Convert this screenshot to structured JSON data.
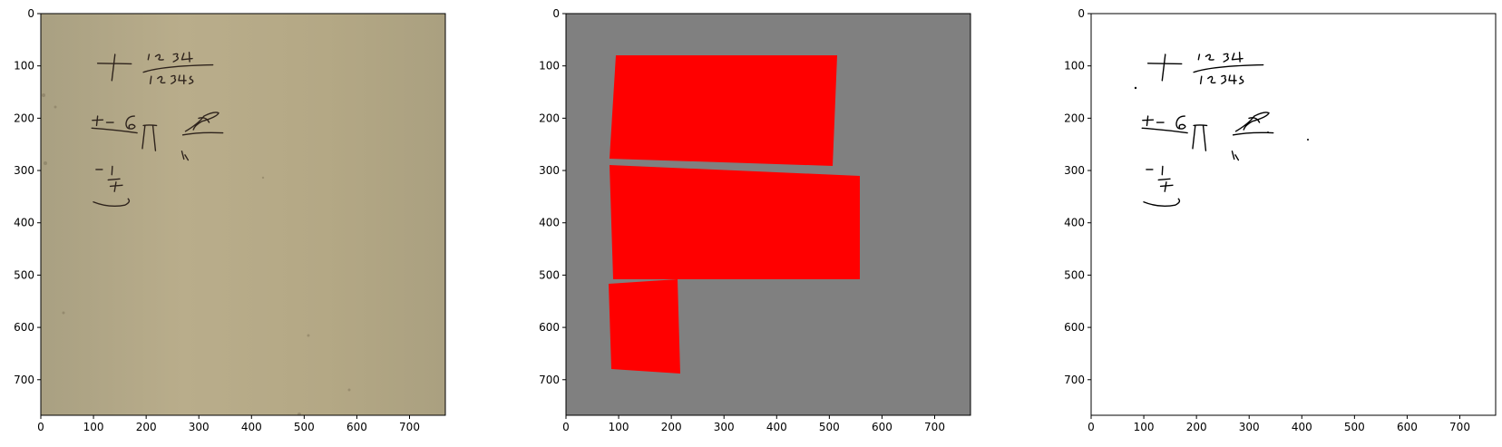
{
  "figure": {
    "panels": [
      {
        "id": "scan",
        "kind": "image",
        "content": "scanned handwritten math fragment",
        "background_color": "#b7aa88",
        "ink_color": "#2e231c",
        "handwriting": [
          "12 34",
          "12345",
          "+",
          "+ - 6",
          "1",
          "+"
        ]
      },
      {
        "id": "mask",
        "kind": "segmentation",
        "background_color": "#808080",
        "region_color": "#ff0000",
        "region_count": 3
      },
      {
        "id": "binarized",
        "kind": "image",
        "background_color": "#ffffff",
        "ink_color": "#000000",
        "handwriting": [
          "12 34",
          "12345",
          "+",
          "+ - 6",
          "1",
          "+"
        ]
      }
    ],
    "x_axis": {
      "range": [
        0,
        768
      ],
      "ticks": [
        0,
        100,
        200,
        300,
        400,
        500,
        600,
        700
      ],
      "labels": [
        "0",
        "100",
        "200",
        "300",
        "400",
        "500",
        "600",
        "700"
      ]
    },
    "y_axis": {
      "range": [
        0,
        768
      ],
      "inverted": true,
      "ticks": [
        0,
        100,
        200,
        300,
        400,
        500,
        600,
        700
      ],
      "labels": [
        "0",
        "100",
        "200",
        "300",
        "400",
        "500",
        "600",
        "700"
      ]
    }
  }
}
